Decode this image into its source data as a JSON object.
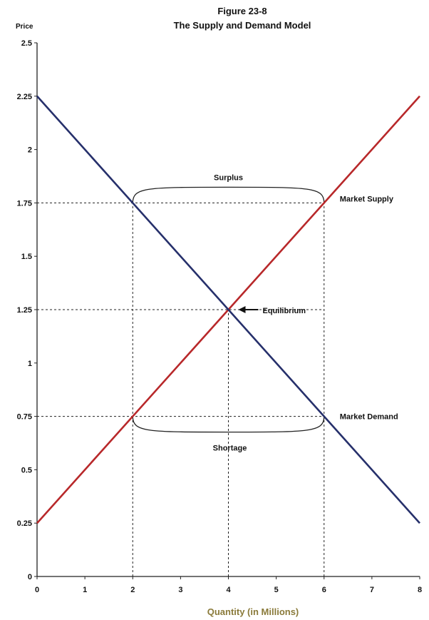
{
  "chart_data": {
    "type": "line",
    "title": "Figure 23-8",
    "subtitle": "The Supply and Demand Model",
    "xlabel": "Quantity (in Millions)",
    "ylabel": "Price",
    "xlim": [
      0,
      8
    ],
    "ylim": [
      0,
      2.5
    ],
    "x_ticks": [
      "0",
      "1",
      "2",
      "3",
      "4",
      "5",
      "6",
      "7",
      "8"
    ],
    "y_ticks": [
      "0",
      "0.25",
      "0.5",
      "0.75",
      "1",
      "1.25",
      "1.5",
      "1.75",
      "2",
      "2.25",
      "2.5"
    ],
    "series": [
      {
        "name": "Market Supply",
        "color": "#b8282a",
        "points": [
          [
            0,
            0.25
          ],
          [
            8,
            2.25
          ]
        ]
      },
      {
        "name": "Market Demand",
        "color": "#26306b",
        "points": [
          [
            0,
            2.25
          ],
          [
            8,
            0.25
          ]
        ]
      }
    ],
    "reference_lines": [
      {
        "y": 1.75,
        "from_x": 0,
        "to_x": 6
      },
      {
        "y": 1.25,
        "from_x": 0,
        "to_x": 6
      },
      {
        "y": 0.75,
        "from_x": 0,
        "to_x": 6
      },
      {
        "x": 2,
        "from_y": 0,
        "to_y": 1.75
      },
      {
        "x": 4,
        "from_y": 0,
        "to_y": 1.25
      },
      {
        "x": 6,
        "from_y": 0,
        "to_y": 1.75
      }
    ],
    "annotations": {
      "surplus": {
        "text": "Surplus",
        "price": 1.75,
        "x_from": 2,
        "x_to": 6
      },
      "shortage": {
        "text": "Shortage",
        "price": 0.75,
        "x_from": 2,
        "x_to": 6
      },
      "equilibrium": {
        "text": "Equilibrium",
        "x": 4,
        "y": 1.25
      }
    },
    "xlabel_color": "#8a7a3a",
    "grid": false
  }
}
